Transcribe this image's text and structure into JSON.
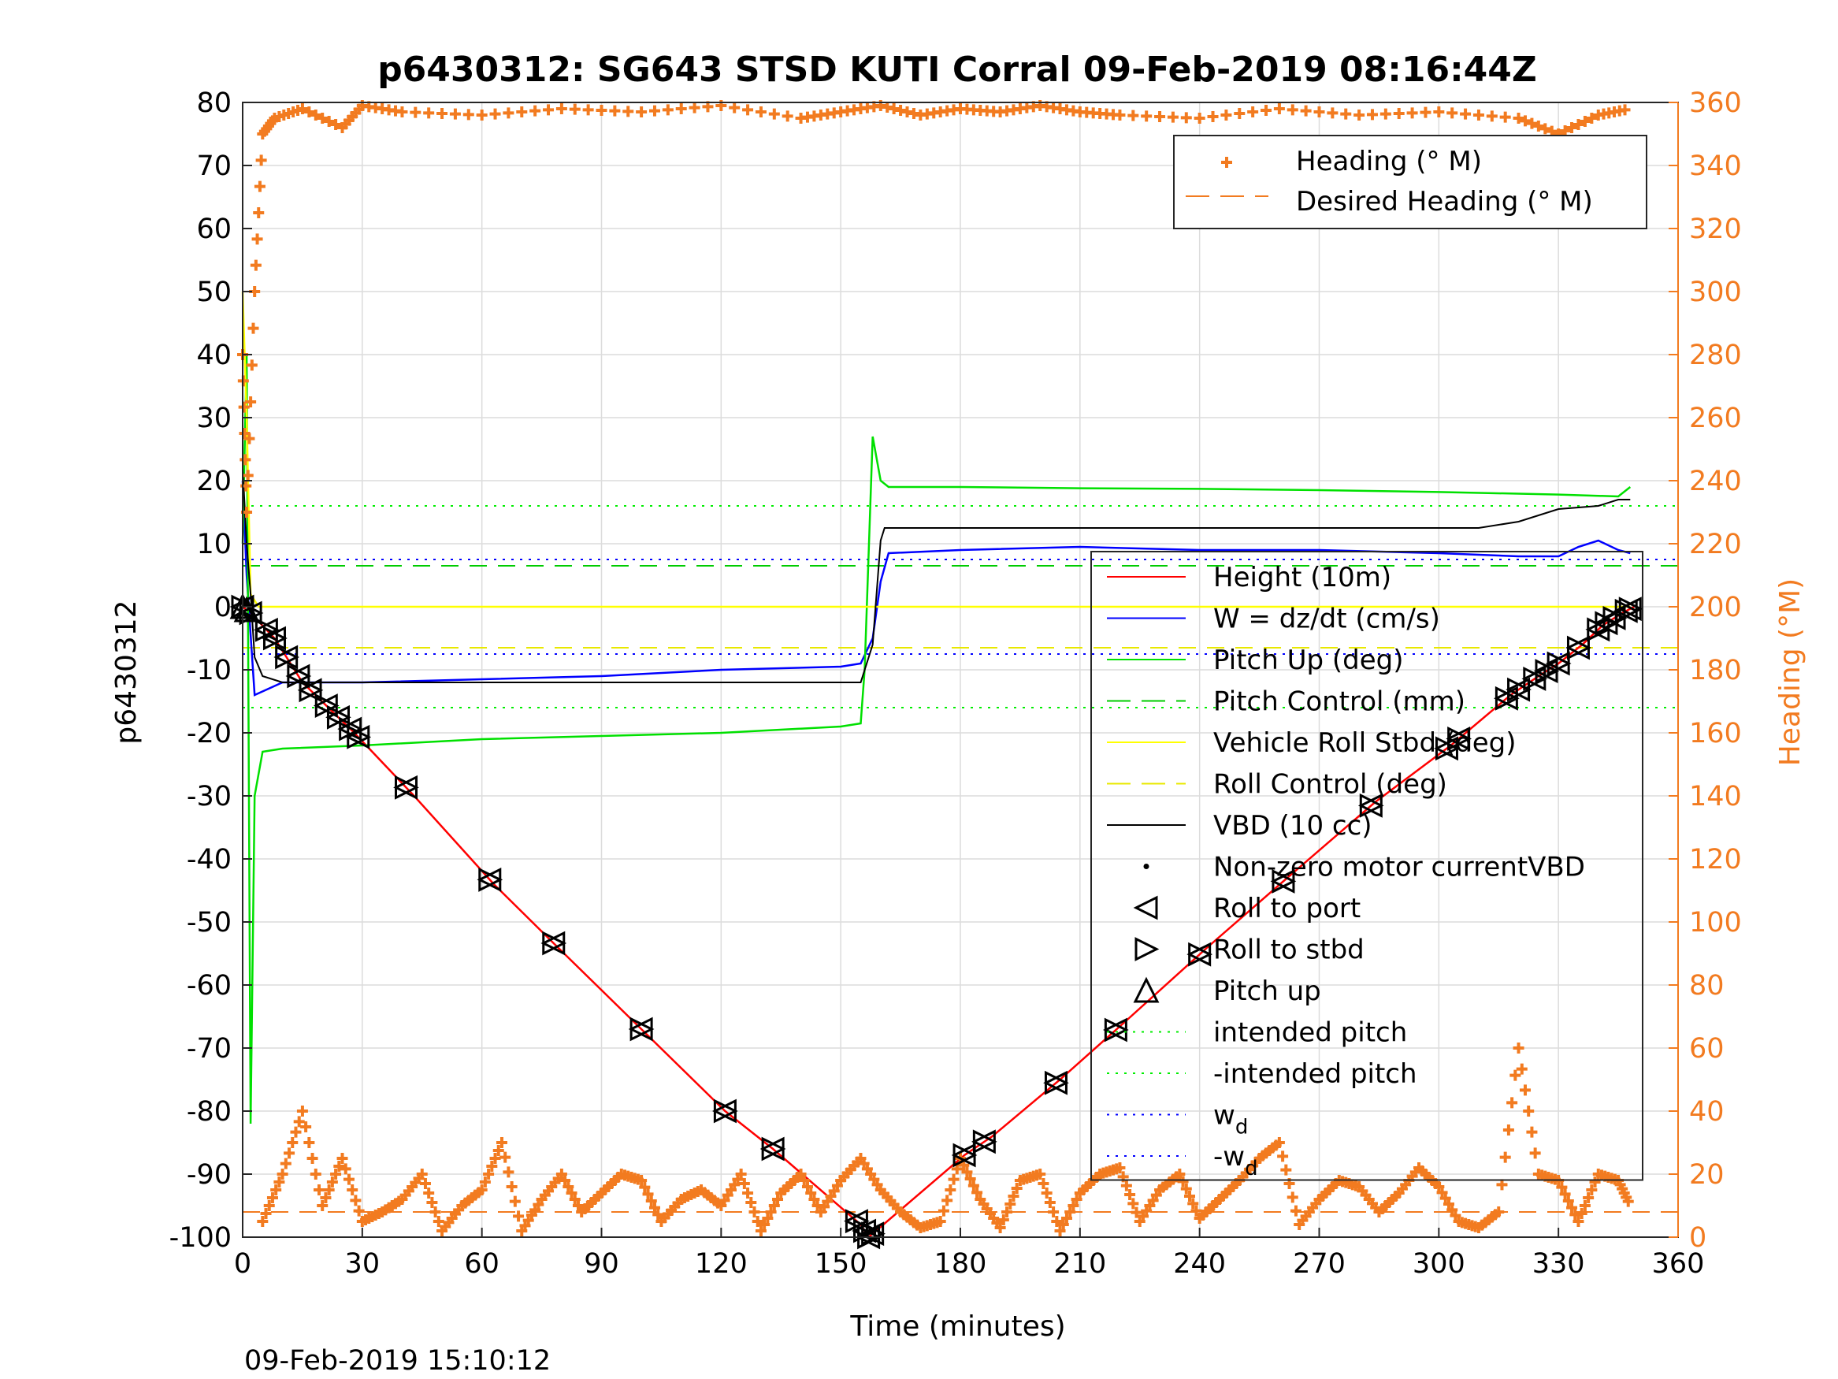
{
  "chart_data": {
    "type": "line",
    "title": "p6430312: SG643 STSD KUTI Corral 09-Feb-2019 08:16:44Z",
    "xlabel": "Time (minutes)",
    "ylabel": "p6430312",
    "y2label": "Heading (°M)",
    "footer": "09-Feb-2019 15:10:12",
    "xlim": [
      0,
      360
    ],
    "ylim": [
      -100,
      80
    ],
    "y2lim": [
      0,
      360
    ],
    "grid": true,
    "xticks": [
      "0",
      "30",
      "60",
      "90",
      "120",
      "150",
      "180",
      "210",
      "240",
      "270",
      "300",
      "330",
      "360"
    ],
    "yticks": [
      "80",
      "70",
      "60",
      "50",
      "40",
      "30",
      "20",
      "10",
      "0",
      "-10",
      "-20",
      "-30",
      "-40",
      "-50",
      "-60",
      "-70",
      "-80",
      "-90",
      "-100"
    ],
    "y2ticks": [
      "360",
      "340",
      "320",
      "300",
      "280",
      "260",
      "240",
      "220",
      "200",
      "180",
      "160",
      "140",
      "120",
      "100",
      "80",
      "60",
      "40",
      "20",
      "0"
    ],
    "colors": {
      "heading": "#f27b20",
      "height": "#ff0000",
      "w": "#0000ff",
      "pitch": "#00e000",
      "roll": "#ffff00",
      "vbd": "#000000",
      "intended_pitch": "#00ee00",
      "wd": "#0000ff"
    },
    "legend_right": {
      "location": "top-right",
      "entries": [
        "Heading (° M)",
        "Desired Heading (° M)"
      ]
    },
    "legend_left": {
      "location": "center-right",
      "entries": [
        "Height (10m)",
        "W = dz/dt (cm/s)",
        "Pitch Up (deg)",
        "Pitch Control (mm)",
        "Vehicle Roll Stbd (deg)",
        "Roll Control (deg)",
        "VBD (10 cc)",
        "Non-zero motor currentVBD",
        "Roll to port",
        "Roll to stbd",
        "Pitch up",
        "intended pitch",
        "-intended pitch",
        "w",
        "-w"
      ],
      "subscripts": {
        "13": "d",
        "14": "d"
      }
    },
    "reference_lines": {
      "intended_pitch": 16,
      "neg_intended_pitch": -16,
      "wd": 7.5,
      "neg_wd": -7.5,
      "pitch_control": 6.5,
      "roll_control": -6.5,
      "desired_heading_deg": 8
    },
    "series": [
      {
        "name": "Height (10m)",
        "axis": "left",
        "x": [
          0,
          2,
          8,
          15,
          28,
          43,
          63,
          79,
          100,
          121,
          133,
          155,
          157,
          181,
          188,
          205,
          221,
          242,
          262,
          284,
          303,
          318,
          325,
          330,
          336,
          341,
          346,
          349
        ],
        "y": [
          0,
          -1,
          -5,
          -12,
          -20,
          -30,
          -44,
          -54,
          -67,
          -80,
          -86,
          -98,
          -100,
          -87,
          -84,
          -75,
          -66,
          -54,
          -43,
          -31,
          -22,
          -14,
          -11,
          -9,
          -6,
          -3,
          -1,
          0
        ]
      },
      {
        "name": "W = dz/dt (cm/s)",
        "axis": "left",
        "x": [
          0,
          1,
          3,
          10,
          30,
          60,
          90,
          120,
          150,
          155,
          158,
          160,
          162,
          180,
          210,
          240,
          270,
          300,
          320,
          330,
          335,
          340,
          345,
          348
        ],
        "y": [
          20,
          5,
          -14,
          -12,
          -12,
          -11.5,
          -11,
          -10,
          -9.5,
          -9,
          -5,
          4,
          8.5,
          9,
          9.5,
          9,
          9,
          8.5,
          8,
          8,
          9.5,
          10.5,
          9,
          8.5
        ]
      },
      {
        "name": "Pitch Up (deg)",
        "axis": "left",
        "x": [
          0,
          1,
          2,
          3,
          5,
          10,
          30,
          60,
          90,
          120,
          150,
          155,
          156,
          158,
          160,
          162,
          180,
          210,
          240,
          270,
          300,
          330,
          345,
          348
        ],
        "y": [
          10,
          40,
          -82,
          -30,
          -23,
          -22.5,
          -22,
          -21,
          -20.5,
          -20,
          -19,
          -18.5,
          -10,
          27,
          20,
          19,
          19,
          18.8,
          18.7,
          18.5,
          18.2,
          17.8,
          17.5,
          19
        ]
      },
      {
        "name": "Vehicle Roll Stbd (deg)",
        "axis": "left",
        "x": [
          0,
          1,
          2,
          4,
          10,
          30,
          60,
          90,
          120,
          150,
          155,
          160,
          180,
          210,
          240,
          270,
          300,
          330,
          345,
          348
        ],
        "y": [
          50,
          30,
          2,
          0,
          0,
          0,
          0,
          0,
          0,
          0,
          0,
          0,
          0,
          0,
          0,
          0,
          0,
          0,
          0,
          0
        ]
      },
      {
        "name": "VBD (10 cc)",
        "axis": "left",
        "x": [
          0,
          1,
          2,
          3,
          5,
          10,
          30,
          60,
          90,
          120,
          150,
          155,
          158,
          160,
          161,
          180,
          210,
          240,
          270,
          300,
          310,
          320,
          325,
          330,
          340,
          345,
          348
        ],
        "y": [
          22,
          10,
          2,
          -8,
          -11,
          -12,
          -12,
          -12,
          -12,
          -12,
          -12,
          -12,
          -6,
          10.5,
          12.5,
          12.5,
          12.5,
          12.5,
          12.5,
          12.5,
          12.5,
          13.5,
          14.5,
          15.5,
          16,
          17,
          17
        ]
      },
      {
        "name": "Heading (° M)",
        "axis": "right",
        "x": [
          0,
          1,
          3,
          5,
          8,
          15,
          25,
          30,
          40,
          60,
          80,
          100,
          120,
          140,
          150,
          160,
          170,
          180,
          190,
          200,
          210,
          220,
          240,
          260,
          280,
          300,
          320,
          330,
          340,
          348
        ],
        "y": [
          280,
          230,
          300,
          350,
          355,
          358,
          352,
          359,
          357,
          356,
          358,
          357,
          359,
          355,
          357,
          359,
          356,
          358,
          357,
          359,
          357,
          356,
          355,
          358,
          356,
          357,
          355,
          350,
          356,
          358
        ]
      },
      {
        "name": "Heading (° M)",
        "axis": "right",
        "x": [
          5,
          10,
          15,
          20,
          25,
          30,
          35,
          40,
          45,
          50,
          55,
          60,
          65,
          70,
          75,
          80,
          85,
          90,
          95,
          100,
          105,
          110,
          115,
          120,
          125,
          130,
          135,
          140,
          145,
          150,
          155,
          160,
          165,
          170,
          175,
          180,
          185,
          190,
          195,
          200,
          205,
          210,
          215,
          220,
          225,
          230,
          235,
          240,
          245,
          250,
          255,
          260,
          265,
          270,
          275,
          280,
          285,
          290,
          295,
          300,
          305,
          310,
          315,
          320,
          325,
          330,
          335,
          340,
          345,
          348
        ],
        "y": [
          5,
          20,
          40,
          10,
          25,
          5,
          8,
          12,
          20,
          2,
          10,
          15,
          30,
          2,
          12,
          20,
          8,
          14,
          20,
          18,
          5,
          12,
          15,
          10,
          20,
          2,
          14,
          20,
          8,
          18,
          25,
          15,
          8,
          3,
          5,
          25,
          12,
          3,
          18,
          20,
          2,
          14,
          20,
          22,
          5,
          15,
          20,
          6,
          12,
          18,
          25,
          30,
          4,
          12,
          18,
          16,
          8,
          14,
          22,
          16,
          5,
          3,
          8,
          60,
          20,
          18,
          5,
          20,
          18,
          10
        ]
      },
      {
        "name": "Desired Heading (° M)",
        "axis": "right",
        "x": [
          0,
          360
        ],
        "y": [
          8,
          8
        ]
      }
    ],
    "markers": {
      "roll_to_port_x": [
        0,
        2,
        6,
        8,
        11,
        14,
        17,
        21,
        24,
        27,
        29,
        41,
        62,
        78,
        100,
        121,
        133,
        154,
        156,
        157,
        158,
        181,
        186,
        204,
        219,
        240,
        261,
        283,
        302,
        305,
        317,
        320,
        324,
        327,
        330,
        335,
        340,
        342,
        344,
        347,
        348
      ],
      "pitch_up_x": [
        0,
        1
      ]
    }
  }
}
